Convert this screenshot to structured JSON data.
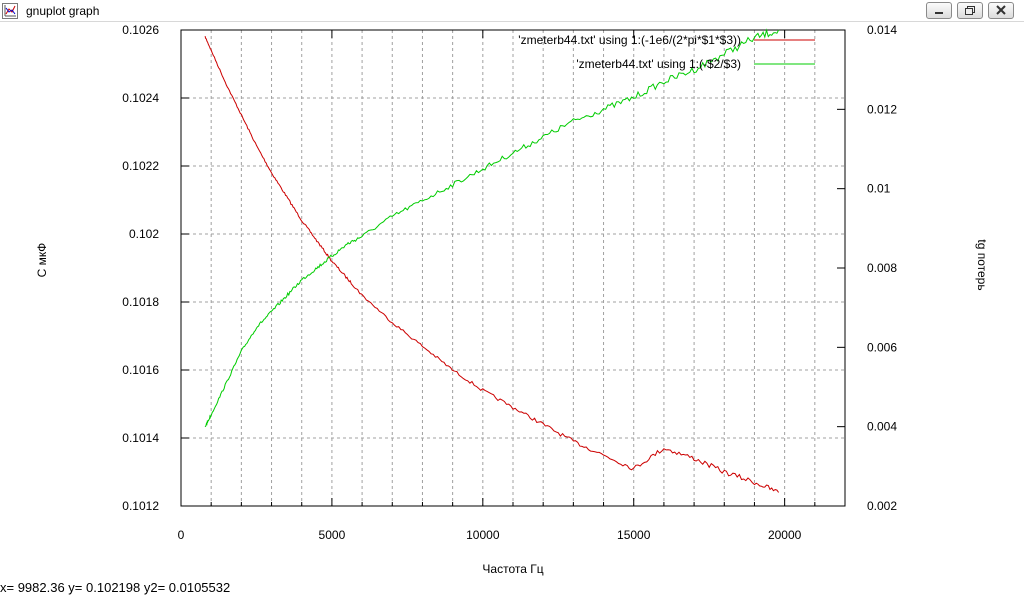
{
  "window": {
    "title": "gnuplot graph"
  },
  "status": {
    "readout": "x= 9982.36 y= 0.102198 y2= 0.0105532"
  },
  "chart_data": {
    "type": "line",
    "xlabel": "Частота Гц",
    "ylabel": "С мкФ",
    "y2label": "tg потерь",
    "xlim": [
      0,
      22000
    ],
    "ylim": [
      0.1012,
      0.1026
    ],
    "y2lim": [
      0.002,
      0.014
    ],
    "x_ticks": [
      "0",
      "5000",
      "10000",
      "15000",
      "20000"
    ],
    "y_ticks": [
      "0.1012",
      "0.1014",
      "0.1016",
      "0.1018",
      "0.102",
      "0.1022",
      "0.1024",
      "0.1026"
    ],
    "y2_ticks": [
      "0.002",
      "0.004",
      "0.006",
      "0.008",
      "0.01",
      "0.012",
      "0.014"
    ],
    "grid": true,
    "legend_position": "top-right",
    "series": [
      {
        "name": "'zmeterb44.txt' using 1:(-1e6/(2*pi*$1*$3))",
        "axis": "y",
        "color": "#cc0000",
        "x": [
          800,
          1000,
          1500,
          2000,
          2500,
          3000,
          3500,
          4000,
          4500,
          5000,
          5500,
          6000,
          7000,
          8000,
          9000,
          10000,
          11000,
          12000,
          13000,
          14000,
          15000,
          16000,
          17000,
          18000,
          19000,
          19800
        ],
        "y": [
          0.10258,
          0.10254,
          0.10244,
          0.10235,
          0.10226,
          0.10218,
          0.10211,
          0.10204,
          0.10198,
          0.10192,
          0.10187,
          0.10182,
          0.10174,
          0.10167,
          0.1016,
          0.10154,
          0.10149,
          0.10144,
          0.10139,
          0.10135,
          0.10131,
          0.10137,
          0.10134,
          0.1013,
          0.10127,
          0.10124
        ]
      },
      {
        "name": "'zmeterb44.txt' using 1:(-$2/$3)",
        "axis": "y2",
        "color": "#00cc00",
        "x": [
          800,
          1000,
          1500,
          2000,
          2500,
          3000,
          3500,
          4000,
          4500,
          5000,
          5500,
          6000,
          7000,
          8000,
          9000,
          10000,
          11000,
          12000,
          13000,
          14000,
          15000,
          16000,
          17000,
          18000,
          19000,
          19800
        ],
        "y": [
          0.004,
          0.0043,
          0.0051,
          0.0059,
          0.0065,
          0.0069,
          0.0073,
          0.0077,
          0.008,
          0.0083,
          0.0086,
          0.0088,
          0.0093,
          0.0097,
          0.0101,
          0.0105,
          0.0109,
          0.0113,
          0.0117,
          0.012,
          0.0123,
          0.0127,
          0.013,
          0.0134,
          0.0138,
          0.014
        ]
      }
    ]
  }
}
